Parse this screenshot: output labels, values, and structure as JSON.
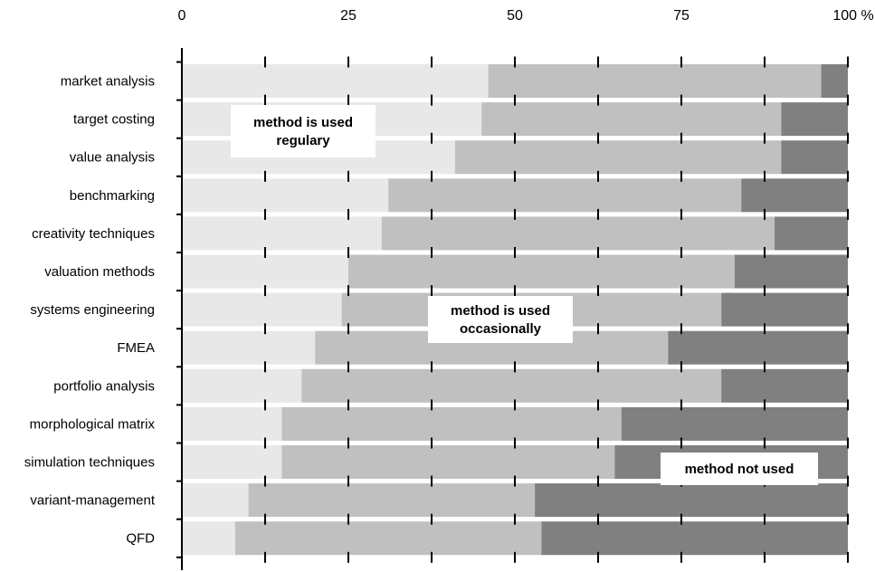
{
  "chart_data": {
    "type": "bar",
    "orientation": "horizontal",
    "stacked": true,
    "categories": [
      "market analysis",
      "target costing",
      "value analysis",
      "benchmarking",
      "creativity techniques",
      "valuation methods",
      "systems engineering",
      "FMEA",
      "portfolio analysis",
      "morphological matrix",
      "simulation techniques",
      "variant-management",
      "QFD"
    ],
    "series": [
      {
        "color": "#e8e8e8",
        "values": [
          46,
          45,
          41,
          31,
          30,
          25,
          24,
          20,
          18,
          15,
          15,
          10,
          8
        ]
      },
      {
        "color": "#c0c0c0",
        "values": [
          50,
          45,
          49,
          53,
          59,
          58,
          57,
          53,
          63,
          51,
          50,
          43,
          46
        ]
      },
      {
        "color": "#808080",
        "values": [
          4,
          10,
          10,
          16,
          11,
          17,
          19,
          27,
          19,
          34,
          35,
          47,
          46
        ]
      }
    ],
    "xlim": [
      0,
      100
    ],
    "x_ticks": [
      "0",
      "25",
      "50",
      "75",
      "100 %"
    ],
    "annotations": [
      {
        "lines": [
          "method is used",
          "regulary"
        ]
      },
      {
        "lines": [
          "method is used",
          "occasionally"
        ]
      },
      {
        "lines": [
          "method not used"
        ]
      }
    ],
    "grid": false
  }
}
